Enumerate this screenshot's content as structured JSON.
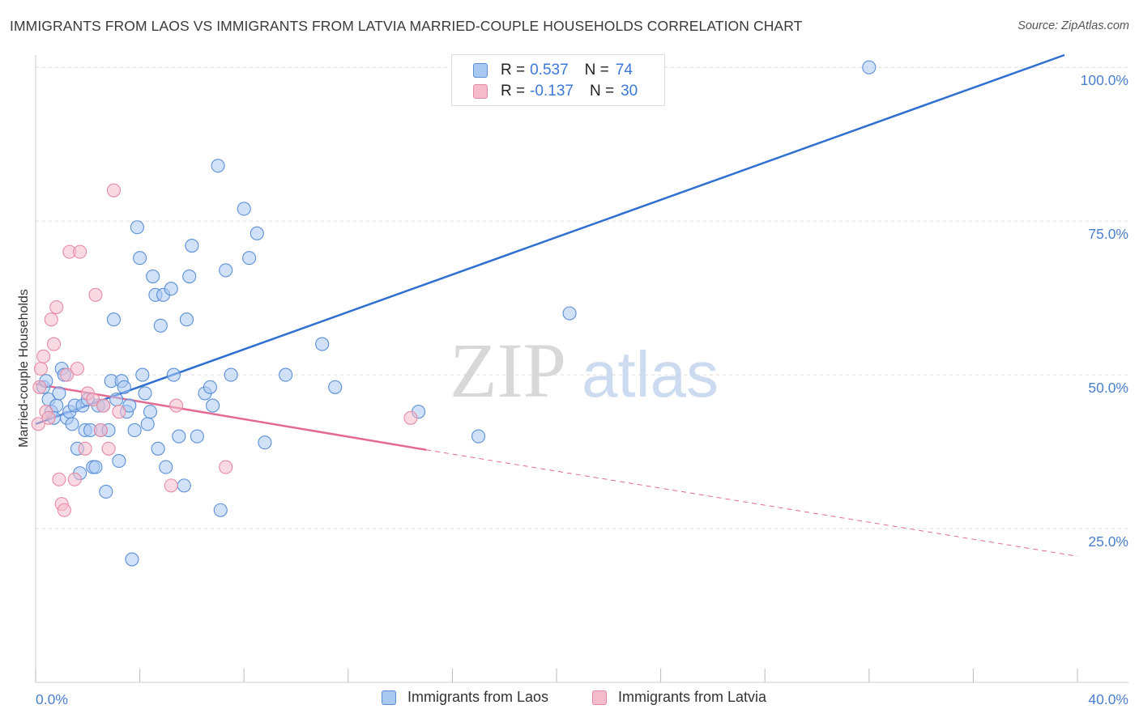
{
  "title": "IMMIGRANTS FROM LAOS VS IMMIGRANTS FROM LATVIA MARRIED-COUPLE HOUSEHOLDS CORRELATION CHART",
  "source": "Source: ZipAtlas.com",
  "watermark": {
    "zip": "ZIP",
    "atlas": "atlas"
  },
  "colors": {
    "laos_fill": "#a9c8f2",
    "laos_stroke": "#5b8fd6",
    "laos_line": "#2f6fd0",
    "latvia_fill": "#f6bccb",
    "latvia_stroke": "#e58aa5",
    "latvia_line": "#e36a93",
    "grid": "#dddddd",
    "tick_text": "#4a7fd0"
  },
  "legend": {
    "rows": [
      {
        "r_label": "R =",
        "r_value": "0.537",
        "n_label": "N =",
        "n_value": "74"
      },
      {
        "r_label": "R =",
        "r_value": "-0.137",
        "n_label": "N =",
        "n_value": "30"
      }
    ]
  },
  "bottom_legend": {
    "laos": "Immigrants from Laos",
    "latvia": "Immigrants from Latvia"
  },
  "chart_data": {
    "type": "scatter",
    "title": "IMMIGRANTS FROM LAOS VS IMMIGRANTS FROM LATVIA MARRIED-COUPLE HOUSEHOLDS CORRELATION CHART",
    "xlabel": "",
    "ylabel": "Married-couple Households",
    "xlim": [
      0,
      40
    ],
    "ylim": [
      0,
      102
    ],
    "x_tick_labels": [
      "0.0%",
      "40.0%"
    ],
    "y_ticks": [
      25,
      50,
      75,
      100
    ],
    "y_tick_labels": [
      "25.0%",
      "50.0%",
      "75.0%",
      "100.0%"
    ],
    "grid": true,
    "legend_position": "top-center",
    "series": [
      {
        "name": "Immigrants from Laos",
        "x": [
          0.3,
          0.4,
          0.5,
          0.6,
          0.7,
          0.8,
          0.9,
          1.0,
          1.1,
          1.2,
          1.3,
          1.4,
          1.5,
          1.6,
          1.7,
          1.8,
          1.9,
          2.0,
          2.1,
          2.2,
          2.3,
          2.4,
          2.5,
          2.6,
          2.7,
          2.8,
          2.9,
          3.0,
          3.1,
          3.2,
          3.3,
          3.4,
          3.5,
          3.6,
          3.7,
          3.8,
          3.9,
          4.0,
          4.1,
          4.2,
          4.3,
          4.4,
          4.5,
          4.6,
          4.7,
          4.8,
          4.9,
          5.0,
          5.2,
          5.3,
          5.5,
          5.7,
          5.8,
          5.9,
          6.0,
          6.2,
          6.5,
          6.7,
          6.8,
          7.0,
          7.1,
          7.3,
          7.5,
          8.0,
          8.2,
          8.5,
          8.8,
          9.6,
          11.0,
          11.5,
          14.7,
          17.0,
          20.5,
          32.0
        ],
        "y": [
          48,
          49,
          46,
          44,
          43,
          45,
          47,
          51,
          50,
          43,
          44,
          42,
          45,
          38,
          34,
          45,
          41,
          46,
          41,
          35,
          35,
          45,
          41,
          45,
          31,
          41,
          49,
          59,
          46,
          36,
          49,
          48,
          44,
          45,
          20,
          41,
          74,
          69,
          50,
          47,
          42,
          44,
          66,
          63,
          38,
          58,
          63,
          35,
          64,
          50,
          40,
          32,
          59,
          66,
          71,
          40,
          47,
          48,
          45,
          84,
          28,
          67,
          50,
          77,
          69,
          73,
          39,
          50,
          55,
          48,
          44,
          40,
          60,
          100
        ]
      },
      {
        "name": "Immigrants from Latvia",
        "x": [
          0.1,
          0.15,
          0.2,
          0.3,
          0.4,
          0.5,
          0.6,
          0.7,
          0.8,
          0.9,
          1.0,
          1.1,
          1.2,
          1.3,
          1.5,
          1.6,
          1.7,
          1.9,
          2.0,
          2.2,
          2.3,
          2.5,
          2.6,
          2.8,
          3.0,
          3.2,
          5.2,
          5.4,
          7.3,
          14.4
        ],
        "y": [
          42,
          48,
          51,
          53,
          44,
          43,
          59,
          55,
          61,
          33,
          29,
          28,
          50,
          70,
          33,
          51,
          70,
          38,
          47,
          46,
          63,
          41,
          45,
          38,
          80,
          44,
          32,
          45,
          35,
          43
        ]
      }
    ],
    "trendlines": [
      {
        "series": "Immigrants from Laos",
        "x": [
          0.0,
          39.5
        ],
        "y": [
          42.0,
          102.0
        ],
        "style": "solid"
      },
      {
        "series": "Immigrants from Latvia",
        "x": [
          0.0,
          15.0
        ],
        "y": [
          48.5,
          37.8
        ],
        "style": "solid"
      },
      {
        "series": "Immigrants from Latvia",
        "x": [
          15.0,
          40.0
        ],
        "y": [
          37.8,
          20.5
        ],
        "style": "dashed"
      }
    ]
  }
}
